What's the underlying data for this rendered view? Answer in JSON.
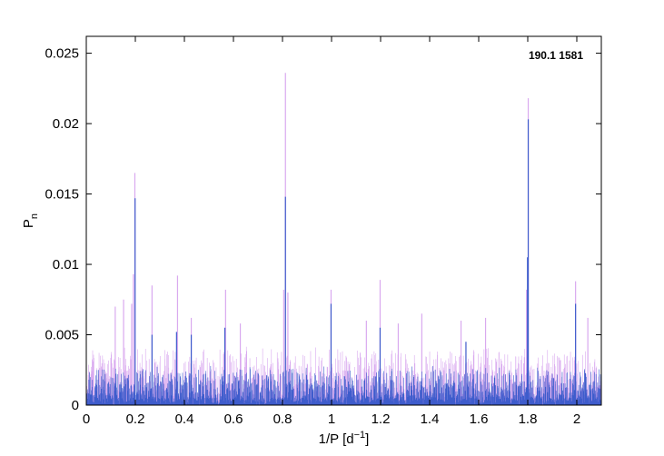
{
  "chart_data": {
    "type": "line",
    "title": "",
    "annotation": "190.1 1581",
    "xlabel": {
      "base": "1/P  [d",
      "sup": "−1",
      "suffix": "]"
    },
    "ylabel": {
      "base": "P",
      "sub": "n"
    },
    "xlim": [
      0,
      2.1
    ],
    "ylim": [
      0,
      0.0262
    ],
    "x_ticks": [
      0,
      0.2,
      0.4,
      0.6,
      0.8,
      1,
      1.2,
      1.4,
      1.6,
      1.8,
      2
    ],
    "x_tick_labels": [
      "0",
      "0.2",
      "0.4",
      "0.6",
      "0.8",
      "1",
      "1.2",
      "1.4",
      "1.6",
      "1.8",
      "2"
    ],
    "y_ticks": [
      0,
      0.005,
      0.01,
      0.015,
      0.02,
      0.025
    ],
    "y_tick_labels": [
      "0",
      "0.005",
      "0.01",
      "0.015",
      "0.02",
      "0.025"
    ],
    "grid": false,
    "series": [
      {
        "color": "#d9a9ef",
        "peaks": [
          {
            "x": 0.198,
            "y": 0.0165
          },
          {
            "x": 0.192,
            "y": 0.0093
          },
          {
            "x": 0.185,
            "y": 0.0072
          },
          {
            "x": 0.152,
            "y": 0.0075
          },
          {
            "x": 0.118,
            "y": 0.007
          },
          {
            "x": 0.268,
            "y": 0.0085
          },
          {
            "x": 0.372,
            "y": 0.0092
          },
          {
            "x": 0.428,
            "y": 0.0062
          },
          {
            "x": 0.568,
            "y": 0.0082
          },
          {
            "x": 0.628,
            "y": 0.0058
          },
          {
            "x": 0.812,
            "y": 0.0236
          },
          {
            "x": 0.805,
            "y": 0.0082
          },
          {
            "x": 0.822,
            "y": 0.008
          },
          {
            "x": 0.998,
            "y": 0.0082
          },
          {
            "x": 1.142,
            "y": 0.006
          },
          {
            "x": 1.198,
            "y": 0.0089
          },
          {
            "x": 1.272,
            "y": 0.0058
          },
          {
            "x": 1.368,
            "y": 0.0065
          },
          {
            "x": 1.528,
            "y": 0.006
          },
          {
            "x": 1.628,
            "y": 0.0062
          },
          {
            "x": 1.802,
            "y": 0.0218
          },
          {
            "x": 1.795,
            "y": 0.0082
          },
          {
            "x": 1.995,
            "y": 0.0088
          },
          {
            "x": 2.045,
            "y": 0.0062
          }
        ],
        "noise_level": 0.003
      },
      {
        "color": "#3e5ccc",
        "peaks": [
          {
            "x": 0.199,
            "y": 0.0147
          },
          {
            "x": 0.812,
            "y": 0.0148
          },
          {
            "x": 1.802,
            "y": 0.0203
          },
          {
            "x": 1.799,
            "y": 0.0105
          },
          {
            "x": 0.998,
            "y": 0.0072
          },
          {
            "x": 1.995,
            "y": 0.0072
          },
          {
            "x": 0.368,
            "y": 0.0052
          },
          {
            "x": 0.565,
            "y": 0.0055
          },
          {
            "x": 0.428,
            "y": 0.005
          },
          {
            "x": 1.198,
            "y": 0.0055
          },
          {
            "x": 0.268,
            "y": 0.005
          },
          {
            "x": 1.548,
            "y": 0.0045
          }
        ],
        "noise_level": 0.002
      }
    ]
  }
}
